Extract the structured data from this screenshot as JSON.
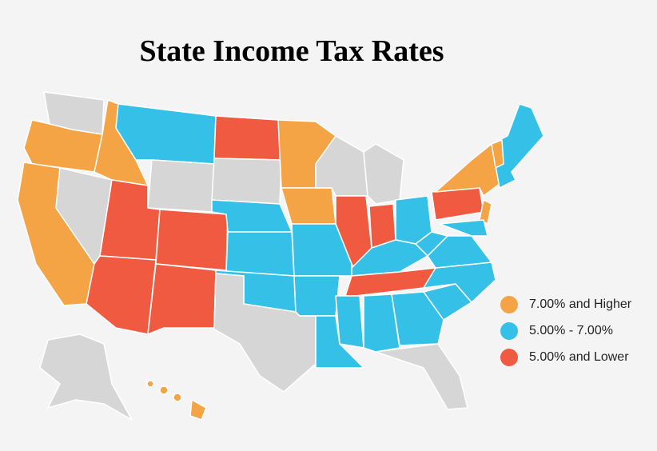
{
  "title": "State Income Tax Rates",
  "legend": [
    {
      "label": "7.00% and Higher",
      "color": "#f4a444"
    },
    {
      "label": "5.00% - 7.00%",
      "color": "#35c0e8"
    },
    {
      "label": "5.00% and Lower",
      "color": "#f05a40"
    }
  ],
  "no_tax_color": "#d6d6d6"
}
